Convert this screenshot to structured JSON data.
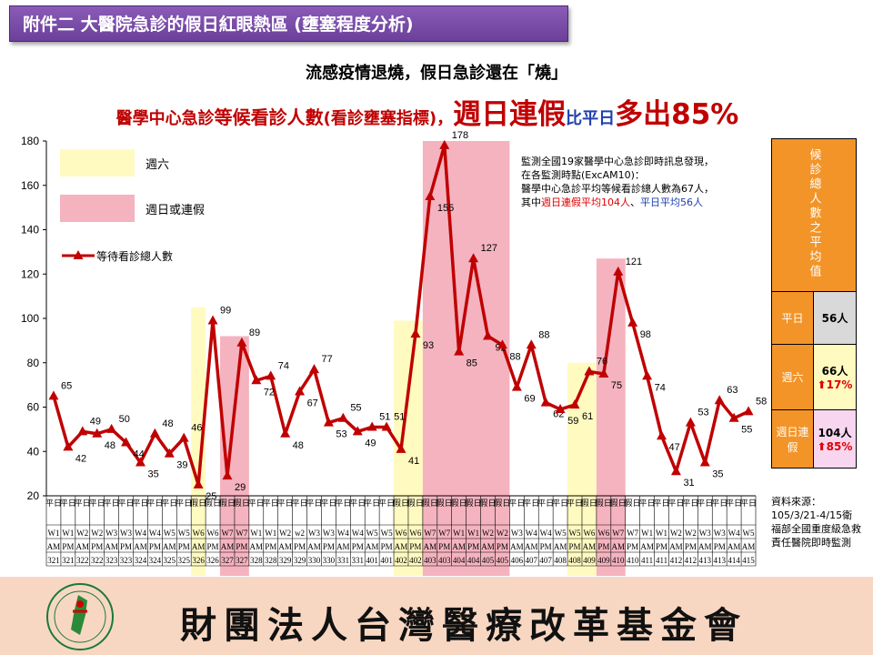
{
  "title_bar": "附件二  大醫院急診的假日紅眼熱區 (壅塞程度分析)",
  "subtitle": "流感疫情退燒，假日急診還在「燒」",
  "headline": {
    "part1": "醫學中心急診",
    "part2": "等候看診人數",
    "part3": "(看診壅塞指標)，",
    "part4": "週日連假",
    "part5": "比平日",
    "part6": "多出85%"
  },
  "legend": {
    "saturday": "週六",
    "sunday_holiday": "週日或連假",
    "line": "等待看診總人數"
  },
  "note": {
    "line1": "監測全國19家醫學中心急診即時訊息發現，",
    "line2": "在各監測時點(ExcAM10)：",
    "line3": "醫學中心急診平均等候看診總人數為67人，",
    "line4_a": "其中",
    "line4_b": "週日連假平均104人",
    "line4_c": "、",
    "line4_d": "平日平均56人"
  },
  "side_table": {
    "header": "候診總人數之平均值",
    "rows": [
      {
        "label": "平日",
        "value": "56人",
        "pct": ""
      },
      {
        "label": "週六",
        "value": "66人",
        "pct": "⬆17%"
      },
      {
        "label": "週日連假",
        "value": "104人",
        "pct": "⬆85%"
      }
    ]
  },
  "source_note": "資料來源：105/3/21-4/15衛福部全國重度級急救責任醫院即時監測",
  "footer": {
    "org_name": "財團法人台灣醫療改革基金會"
  },
  "colors": {
    "line": "#c00000",
    "saturday": "#fffac0",
    "sunday": "#f4b3bf",
    "side_header": "#f39428",
    "purple": "#7b4aa8"
  },
  "chart_data": {
    "type": "line",
    "ylim": [
      20,
      180
    ],
    "yticks": [
      20,
      40,
      60,
      80,
      100,
      120,
      140,
      160,
      180
    ],
    "series": [
      {
        "name": "等待看診總人數",
        "values": [
          65,
          42,
          49,
          48,
          50,
          44,
          35,
          48,
          39,
          46,
          25,
          99,
          29,
          89,
          72,
          74,
          48,
          67,
          77,
          53,
          55,
          49,
          51,
          51,
          41,
          93,
          155,
          178,
          85,
          127,
          92,
          88,
          69,
          88,
          62,
          59,
          61,
          76,
          75,
          121,
          98,
          74,
          47,
          31,
          53,
          35,
          63,
          55,
          58
        ]
      }
    ],
    "labels": [
      "65",
      "42",
      "49",
      "48",
      "50",
      "44",
      "35",
      "48",
      "39",
      "46",
      "25",
      "99",
      "29",
      "89",
      "72",
      "74",
      "48",
      "67",
      "77",
      "53",
      "55",
      "49",
      "51",
      "51",
      "41",
      "93",
      "155",
      "178",
      "85",
      "127",
      "92",
      "88",
      "69",
      "88",
      "62",
      "59",
      "61",
      "76",
      "75",
      "121",
      "98",
      "74",
      "47",
      "31",
      "53",
      "35",
      "63",
      "55",
      "58"
    ],
    "highlights": [
      {
        "type": "saturday",
        "from": 10,
        "to": 10,
        "top": 105
      },
      {
        "type": "sunday",
        "from": 12,
        "to": 13,
        "top": 92
      },
      {
        "type": "saturday",
        "from": 24,
        "to": 25,
        "top": 99
      },
      {
        "type": "sunday",
        "from": 26,
        "to": 31,
        "top": 180
      },
      {
        "type": "saturday",
        "from": 36,
        "to": 37,
        "top": 80
      },
      {
        "type": "sunday",
        "from": 38,
        "to": 39,
        "top": 127
      }
    ],
    "x_labels": [
      {
        "day": "平日",
        "week": "W1",
        "ampm": "AM",
        "date": "321"
      },
      {
        "day": "平日",
        "week": "W1",
        "ampm": "PM",
        "date": "321"
      },
      {
        "day": "平日",
        "week": "W2",
        "ampm": "AM",
        "date": "322"
      },
      {
        "day": "平日",
        "week": "W2",
        "ampm": "PM",
        "date": "322"
      },
      {
        "day": "平日",
        "week": "W3",
        "ampm": "AM",
        "date": "323"
      },
      {
        "day": "平日",
        "week": "W3",
        "ampm": "PM",
        "date": "323"
      },
      {
        "day": "平日",
        "week": "W4",
        "ampm": "AM",
        "date": "324"
      },
      {
        "day": "平日",
        "week": "W4",
        "ampm": "PM",
        "date": "324"
      },
      {
        "day": "平日",
        "week": "W5",
        "ampm": "AM",
        "date": "325"
      },
      {
        "day": "平日",
        "week": "W5",
        "ampm": "PM",
        "date": "325"
      },
      {
        "day": "假日",
        "week": "W6",
        "ampm": "AM",
        "date": "326"
      },
      {
        "day": "假日",
        "week": "W6",
        "ampm": "PM",
        "date": "326"
      },
      {
        "day": "假日",
        "week": "W7",
        "ampm": "AM",
        "date": "327"
      },
      {
        "day": "假日",
        "week": "W7",
        "ampm": "PM",
        "date": "327"
      },
      {
        "day": "平日",
        "week": "W1",
        "ampm": "AM",
        "date": "328"
      },
      {
        "day": "平日",
        "week": "W1",
        "ampm": "PM",
        "date": "328"
      },
      {
        "day": "平日",
        "week": "W2",
        "ampm": "AM",
        "date": "329"
      },
      {
        "day": "平日",
        "week": "w2",
        "ampm": "PM",
        "date": "329"
      },
      {
        "day": "平日",
        "week": "W3",
        "ampm": "AM",
        "date": "330"
      },
      {
        "day": "平日",
        "week": "W3",
        "ampm": "PM",
        "date": "330"
      },
      {
        "day": "平日",
        "week": "W4",
        "ampm": "AM",
        "date": "331"
      },
      {
        "day": "平日",
        "week": "W4",
        "ampm": "PM",
        "date": "331"
      },
      {
        "day": "平日",
        "week": "W5",
        "ampm": "AM",
        "date": "401"
      },
      {
        "day": "平日",
        "week": "W5",
        "ampm": "PM",
        "date": "401"
      },
      {
        "day": "假日",
        "week": "W6",
        "ampm": "AM",
        "date": "402"
      },
      {
        "day": "假日",
        "week": "W6",
        "ampm": "PM",
        "date": "402"
      },
      {
        "day": "假日",
        "week": "W7",
        "ampm": "AM",
        "date": "403"
      },
      {
        "day": "假日",
        "week": "W7",
        "ampm": "PM",
        "date": "403"
      },
      {
        "day": "假日",
        "week": "W1",
        "ampm": "AM",
        "date": "404"
      },
      {
        "day": "假日",
        "week": "W1",
        "ampm": "PM",
        "date": "404"
      },
      {
        "day": "假日",
        "week": "W2",
        "ampm": "AM",
        "date": "405"
      },
      {
        "day": "假日",
        "week": "W2",
        "ampm": "PM",
        "date": "405"
      },
      {
        "day": "平日",
        "week": "W3",
        "ampm": "AM",
        "date": "406"
      },
      {
        "day": "平日",
        "week": "W4",
        "ampm": "AM",
        "date": "407"
      },
      {
        "day": "平日",
        "week": "W4",
        "ampm": "PM",
        "date": "407"
      },
      {
        "day": "平日",
        "week": "W5",
        "ampm": "AM",
        "date": "408"
      },
      {
        "day": "平日",
        "week": "W5",
        "ampm": "PM",
        "date": "408"
      },
      {
        "day": "假日",
        "week": "W6",
        "ampm": "AM",
        "date": "409"
      },
      {
        "day": "假日",
        "week": "W6",
        "ampm": "PM",
        "date": "409"
      },
      {
        "day": "假日",
        "week": "W7",
        "ampm": "AM",
        "date": "410"
      },
      {
        "day": "假日",
        "week": "W7",
        "ampm": "PM",
        "date": "410"
      },
      {
        "day": "平日",
        "week": "W1",
        "ampm": "AM",
        "date": "411"
      },
      {
        "day": "平日",
        "week": "W1",
        "ampm": "PM",
        "date": "411"
      },
      {
        "day": "平日",
        "week": "W2",
        "ampm": "AM",
        "date": "412"
      },
      {
        "day": "平日",
        "week": "W2",
        "ampm": "PM",
        "date": "412"
      },
      {
        "day": "平日",
        "week": "W3",
        "ampm": "AM",
        "date": "413"
      },
      {
        "day": "平日",
        "week": "W3",
        "ampm": "PM",
        "date": "413"
      },
      {
        "day": "平日",
        "week": "W4",
        "ampm": "AM",
        "date": "414"
      },
      {
        "day": "平日",
        "week": "W5",
        "ampm": "AM",
        "date": "415"
      }
    ]
  }
}
